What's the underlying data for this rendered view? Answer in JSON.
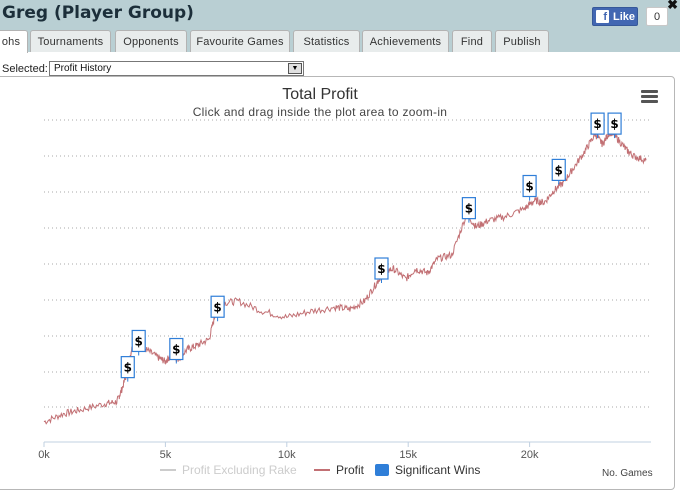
{
  "page": {
    "title": "Greg (Player Group)",
    "close_symbol": "✖"
  },
  "facebook": {
    "like_label": "Like",
    "like_icon": "f",
    "count": "0"
  },
  "tabs": [
    {
      "label": "ohs",
      "active": true
    },
    {
      "label": "Tournaments",
      "active": false
    },
    {
      "label": "Opponents",
      "active": false
    },
    {
      "label": "Favourite Games",
      "active": false
    },
    {
      "label": "Statistics",
      "active": false
    },
    {
      "label": "Achievements",
      "active": false
    },
    {
      "label": "Find",
      "active": false
    },
    {
      "label": "Publish",
      "active": false
    }
  ],
  "selector": {
    "label": "Selected:",
    "value": "Profit History",
    "arrow_icon": "chevron-down-icon"
  },
  "chart_data": {
    "type": "line",
    "title": "Total Profit",
    "subtitle": "Click and drag inside the plot area to zoom-in",
    "xlabel": "No. Games",
    "xticks": [
      "0k",
      "5k",
      "10k",
      "15k",
      "20k"
    ],
    "xlim": [
      0,
      25000
    ],
    "grid": true,
    "legend_position": "bottom",
    "legend": [
      "Profit Excluding Rake",
      "Profit",
      "Significant Wins"
    ],
    "series": [
      {
        "name": "Profit Excluding Rake",
        "color": "#cccccc",
        "values": []
      },
      {
        "name": "Profit",
        "color": "#c27074",
        "x": [
          0,
          800,
          1500,
          2500,
          3000,
          3200,
          3500,
          3600,
          3750,
          4200,
          4700,
          5000,
          5300,
          5500,
          5900,
          6300,
          6800,
          7100,
          7300,
          8000,
          9000,
          10000,
          11000,
          12000,
          12600,
          13200,
          13700,
          14000,
          14400,
          14900,
          15300,
          15800,
          16200,
          16800,
          17400,
          17800,
          18300,
          19000,
          19800,
          20200,
          20600,
          21000,
          21400,
          21800,
          22300,
          22700,
          23000,
          23300,
          23600,
          24000,
          24300,
          24800
        ],
        "values": [
          1.0,
          1.4,
          1.6,
          1.9,
          2.0,
          2.6,
          3.7,
          4.6,
          4.9,
          4.6,
          4.2,
          4.0,
          4.4,
          4.1,
          4.6,
          4.8,
          5.1,
          6.6,
          6.9,
          7.0,
          6.5,
          6.2,
          6.5,
          6.7,
          6.6,
          7.0,
          7.9,
          8.5,
          8.6,
          8.1,
          8.6,
          8.4,
          9.1,
          9.3,
          11.3,
          10.7,
          11.0,
          11.2,
          11.6,
          12.0,
          11.9,
          12.5,
          12.9,
          13.6,
          14.5,
          15.3,
          14.8,
          15.4,
          15.1,
          14.5,
          14.2,
          14.0
        ]
      }
    ],
    "flags": [
      {
        "label": "$",
        "x": 3450,
        "y": 3.0
      },
      {
        "label": "$",
        "x": 3900,
        "y": 4.3
      },
      {
        "label": "$",
        "x": 5450,
        "y": 3.9
      },
      {
        "label": "$",
        "x": 7150,
        "y": 6.0
      },
      {
        "label": "$",
        "x": 13900,
        "y": 7.9
      },
      {
        "label": "$",
        "x": 17500,
        "y": 10.9
      },
      {
        "label": "$",
        "x": 20000,
        "y": 12.0
      },
      {
        "label": "$",
        "x": 21200,
        "y": 12.8
      },
      {
        "label": "$",
        "x": 22800,
        "y": 15.1
      },
      {
        "label": "$",
        "x": 23500,
        "y": 15.1
      }
    ],
    "colors": {
      "profit": "#c27074",
      "excluding_rake": "#cccccc",
      "significant_wins": "#2f7ed8"
    }
  }
}
